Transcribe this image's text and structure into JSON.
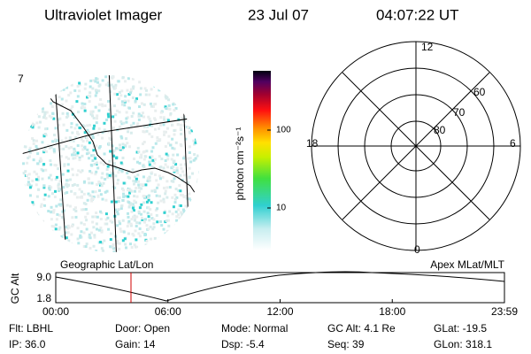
{
  "header": {
    "instrument": "Ultraviolet Imager",
    "date": "23 Jul 07",
    "time": "04:07:22 UT"
  },
  "map": {
    "label": "7"
  },
  "colorbar": {
    "unit": "photon cm⁻²s⁻¹",
    "ticks": [
      "100",
      "10"
    ]
  },
  "polar": {
    "mlt_labels": [
      "12",
      "6",
      "0",
      "18"
    ],
    "mlat_labels": [
      "60",
      "70",
      "80"
    ]
  },
  "orbit": {
    "left_title": "Geographic Lat/Lon",
    "right_title": "Apex MLat/MLT",
    "axis_label": "GC Alt",
    "y_ticks": [
      "9.0",
      "1.8"
    ],
    "x_ticks": [
      "00:00",
      "06:00",
      "12:00",
      "18:00",
      "23:59"
    ]
  },
  "status": {
    "rows": [
      [
        "Flt: LBHL",
        "Door: Open",
        "Mode: Normal",
        "GC Alt: 4.1 Re",
        "GLat: -19.5"
      ],
      [
        "IP: 36.0",
        "Gain: 14",
        "Dsp:   -5.4",
        "Seq: 39",
        "GLon: 318.1"
      ]
    ]
  }
}
